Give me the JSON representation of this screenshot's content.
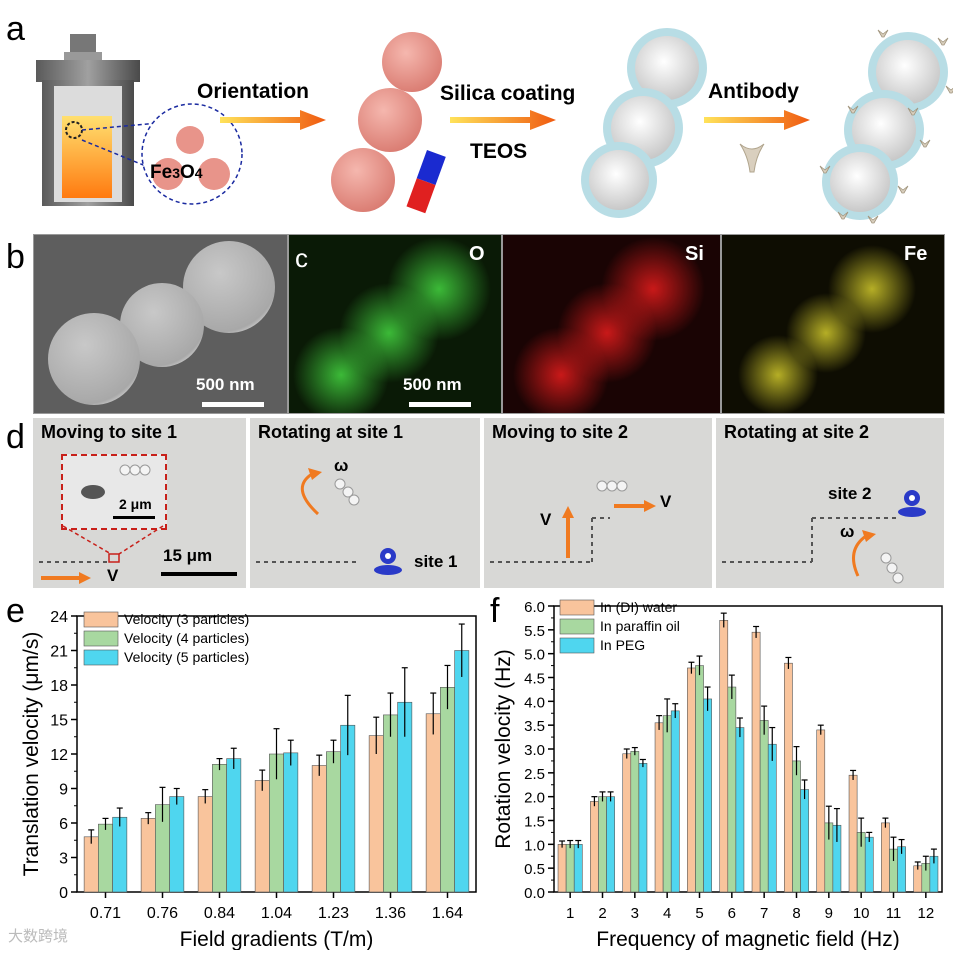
{
  "panels": {
    "a": {
      "letter": "a",
      "orientation": "Orientation",
      "silica": "Silica coating",
      "teos": "TEOS",
      "antibody": "Antibody",
      "fe": "Fe",
      "fe_sub3": "3",
      "o": "O",
      "o_sub4": "4"
    },
    "b": {
      "letter": "b",
      "scale": "500 nm"
    },
    "c": {
      "letter": "c",
      "scale": "500 nm",
      "o": "O",
      "si": "Si",
      "fe": "Fe"
    },
    "d": {
      "letter": "d",
      "frame1": {
        "title": "Moving to site 1",
        "scale_inset": "2 μm",
        "scale": "15 μm",
        "v": "V"
      },
      "frame2": {
        "title": "Rotating at site 1",
        "omega": "ω",
        "site": "site 1"
      },
      "frame3": {
        "title": "Moving to site 2",
        "v1": "V",
        "v2": "V"
      },
      "frame4": {
        "title": "Rotating at site 2",
        "omega": "ω",
        "site": "site 2"
      }
    },
    "e": {
      "letter": "e"
    },
    "f": {
      "letter": "f"
    }
  },
  "colors": {
    "orange": "#f9c49c",
    "green": "#a8d8a0",
    "cyan": "#4fd6ef",
    "particle": "#e8948a",
    "silica": "#b8dde5",
    "arrow": "#f07a20"
  },
  "watermark": "大数跨境",
  "chart_data": [
    {
      "id": "e",
      "type": "bar",
      "title": "",
      "xlabel": "Field gradients (T/m)",
      "ylabel": "Translation velocity (μm/s)",
      "categories": [
        "0.71",
        "0.76",
        "0.84",
        "1.04",
        "1.23",
        "1.36",
        "1.64"
      ],
      "ylim": [
        0,
        24
      ],
      "yticks": [
        0,
        3,
        6,
        9,
        12,
        15,
        18,
        21,
        24
      ],
      "legend_position": "top-left",
      "series": [
        {
          "name": "Velocity (3 particles)",
          "values": [
            4.8,
            6.4,
            8.3,
            9.7,
            11.0,
            13.6,
            15.5
          ],
          "errors": [
            0.6,
            0.5,
            0.6,
            0.9,
            0.9,
            1.6,
            1.8
          ]
        },
        {
          "name": "Velocity (4 particles)",
          "values": [
            5.9,
            7.6,
            11.1,
            12.0,
            12.2,
            15.4,
            17.8
          ],
          "errors": [
            0.5,
            1.5,
            0.5,
            2.2,
            1.0,
            1.9,
            1.9
          ]
        },
        {
          "name": "Velocity (5 particles)",
          "values": [
            6.5,
            8.3,
            11.6,
            12.1,
            14.5,
            16.5,
            21.0
          ],
          "errors": [
            0.8,
            0.7,
            0.9,
            1.1,
            2.6,
            3.0,
            2.3
          ]
        }
      ]
    },
    {
      "id": "f",
      "type": "bar",
      "title": "",
      "xlabel": "Frequency of magnetic field (Hz)",
      "ylabel": "Rotation velocity (Hz)",
      "categories": [
        "1",
        "2",
        "3",
        "4",
        "5",
        "6",
        "7",
        "8",
        "9",
        "10",
        "11",
        "12"
      ],
      "ylim": [
        0,
        6.0
      ],
      "yticks": [
        0.0,
        0.5,
        1.0,
        1.5,
        2.0,
        2.5,
        3.0,
        3.5,
        4.0,
        4.5,
        5.0,
        5.5,
        6.0
      ],
      "legend_position": "top-left",
      "series": [
        {
          "name": "In (DI) water",
          "values": [
            1.0,
            1.9,
            2.9,
            3.55,
            4.7,
            5.7,
            5.45,
            4.8,
            3.4,
            2.45,
            1.45,
            0.55
          ],
          "errors": [
            0.07,
            0.1,
            0.1,
            0.15,
            0.12,
            0.15,
            0.12,
            0.12,
            0.1,
            0.1,
            0.1,
            0.08
          ]
        },
        {
          "name": "In paraffin oil",
          "values": [
            1.0,
            2.0,
            2.95,
            3.7,
            4.75,
            4.3,
            3.6,
            2.75,
            1.45,
            1.25,
            0.9,
            0.6
          ],
          "errors": [
            0.08,
            0.1,
            0.08,
            0.35,
            0.2,
            0.25,
            0.3,
            0.3,
            0.35,
            0.3,
            0.25,
            0.15
          ]
        },
        {
          "name": "In PEG",
          "values": [
            1.0,
            2.0,
            2.7,
            3.8,
            4.05,
            3.45,
            3.1,
            2.15,
            1.4,
            1.15,
            0.95,
            0.75
          ],
          "errors": [
            0.08,
            0.1,
            0.08,
            0.15,
            0.25,
            0.2,
            0.35,
            0.2,
            0.35,
            0.1,
            0.15,
            0.15
          ]
        }
      ]
    }
  ]
}
